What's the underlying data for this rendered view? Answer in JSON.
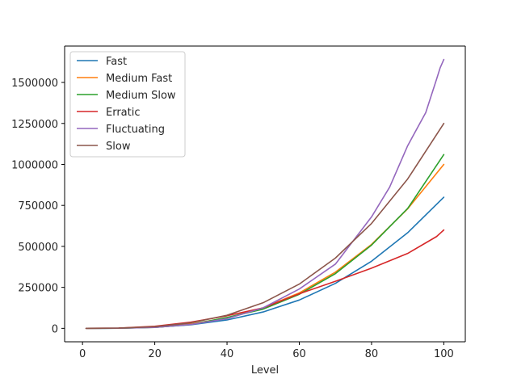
{
  "chart_data": {
    "type": "line",
    "title": "",
    "xlabel": "Level",
    "ylabel": "",
    "xlim": [
      -4.95,
      105.95
    ],
    "ylim": [
      -82000,
      1722000
    ],
    "xticks": [
      0,
      20,
      40,
      60,
      80,
      100
    ],
    "yticks": [
      0,
      250000,
      500000,
      750000,
      1000000,
      1250000,
      1500000
    ],
    "legend_position": "top-left",
    "grid": false,
    "series": [
      {
        "name": "Fast",
        "color": "#1f77b4",
        "x": [
          1,
          10,
          20,
          30,
          40,
          50,
          60,
          70,
          80,
          90,
          100
        ],
        "y": [
          1,
          800,
          6400,
          21600,
          51200,
          100000,
          172800,
          274400,
          409600,
          583200,
          800000
        ]
      },
      {
        "name": "Medium Fast",
        "color": "#ff7f0e",
        "x": [
          1,
          10,
          20,
          30,
          40,
          50,
          60,
          70,
          80,
          90,
          100
        ],
        "y": [
          1,
          1000,
          8000,
          27000,
          64000,
          125000,
          216000,
          343000,
          512000,
          729000,
          1000000
        ]
      },
      {
        "name": "Medium Slow",
        "color": "#2ca02c",
        "x": [
          1,
          10,
          20,
          30,
          40,
          50,
          60,
          70,
          80,
          90,
          100
        ],
        "y": [
          0,
          560,
          5460,
          23360,
          66260,
          117360,
          207660,
          333760,
          507660,
          731360,
          1059860
        ]
      },
      {
        "name": "Erratic",
        "color": "#d62728",
        "x": [
          1,
          10,
          20,
          30,
          40,
          50,
          60,
          70,
          80,
          90,
          98,
          99,
          100
        ],
        "y": [
          0,
          1800,
          12800,
          37800,
          76800,
          125000,
          211000,
          287000,
          367000,
          457000,
          560000,
          580000,
          600000
        ]
      },
      {
        "name": "Fluctuating",
        "color": "#9467bd",
        "x": [
          1,
          10,
          20,
          30,
          40,
          50,
          60,
          70,
          80,
          85,
          90,
          95,
          98,
          99,
          100
        ],
        "y": [
          0,
          540,
          5440,
          23760,
          59000,
          125000,
          240000,
          392000,
          680000,
          861000,
          1114000,
          1316000,
          1520000,
          1590000,
          1640000
        ]
      },
      {
        "name": "Slow",
        "color": "#8c564b",
        "x": [
          1,
          10,
          20,
          30,
          40,
          50,
          60,
          70,
          80,
          90,
          100
        ],
        "y": [
          1,
          1250,
          10000,
          33750,
          80000,
          156250,
          270000,
          428750,
          640000,
          911250,
          1250000
        ]
      }
    ]
  }
}
